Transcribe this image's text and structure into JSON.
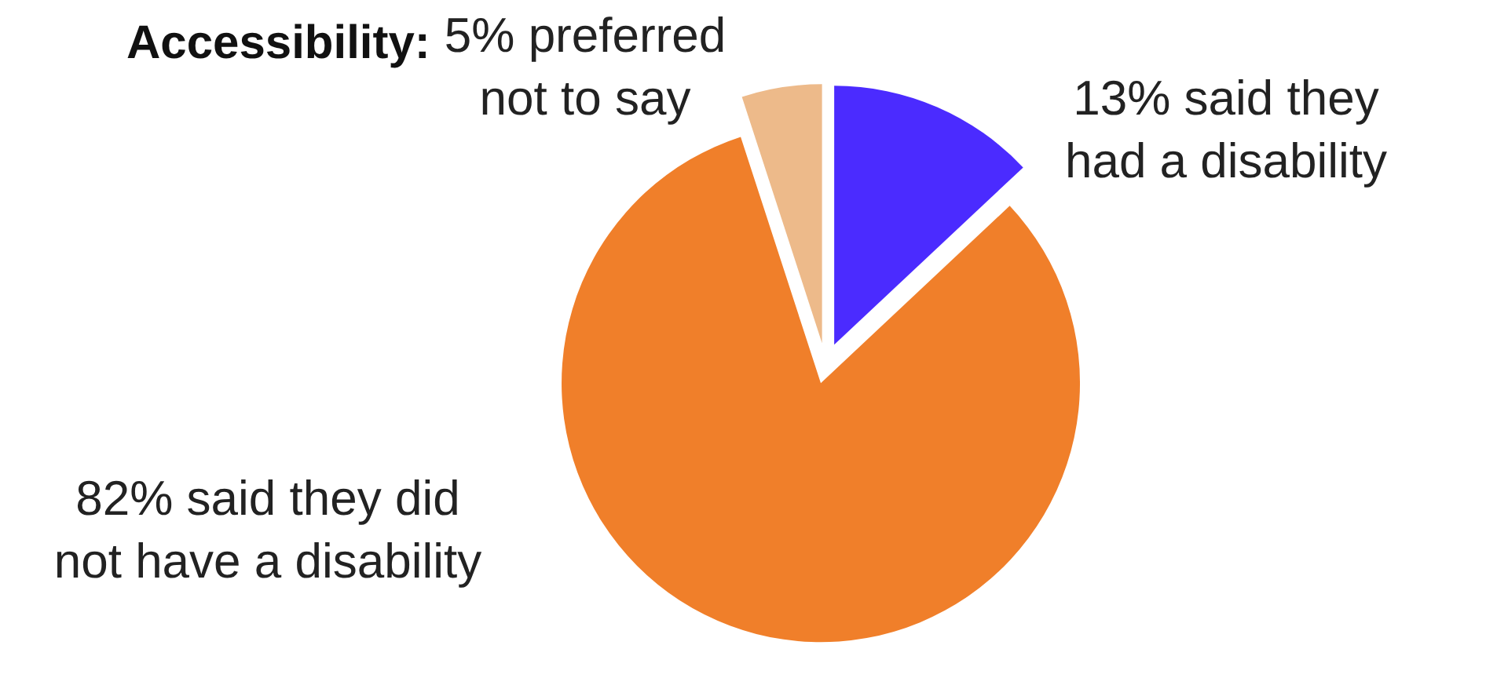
{
  "chart_data": {
    "type": "pie",
    "title": "Accessibility:",
    "categories": [
      "13% said they\nhad a disability",
      "82% said they did\nnot have a disability",
      "5% preferred\nnot to say"
    ],
    "values": [
      13,
      82,
      5
    ],
    "colors": [
      "#4b2bff",
      "#f07f2a",
      "#edba8a"
    ],
    "legend": false
  }
}
